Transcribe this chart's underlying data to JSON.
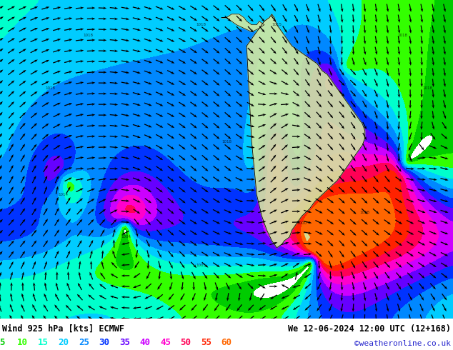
{
  "title_left": "Wind 925 hPa [kts] ECMWF",
  "title_right": "We 12-06-2024 12:00 UTC (12+168)",
  "credit": "©weatheronline.co.uk",
  "legend_values": [
    "5",
    "10",
    "15",
    "20",
    "25",
    "30",
    "35",
    "40",
    "45",
    "50",
    "55",
    "60"
  ],
  "legend_colors": [
    "#00cc00",
    "#33ff00",
    "#00ffcc",
    "#00ccff",
    "#0088ff",
    "#0033ff",
    "#6600ff",
    "#cc00ff",
    "#ff00cc",
    "#ff0055",
    "#ff2200",
    "#ff6600"
  ],
  "bg_color": "#ffffff",
  "fig_width": 6.34,
  "fig_height": 4.9,
  "dpi": 100,
  "xlim": [
    -180,
    0
  ],
  "ylim": [
    -75,
    15
  ],
  "color_thresholds": [
    5,
    10,
    15,
    20,
    25,
    30,
    35,
    40,
    45,
    50,
    55,
    60
  ],
  "color_values": [
    "#ffffff",
    "#00cc00",
    "#33ff00",
    "#00ffcc",
    "#00ccff",
    "#0088ff",
    "#0033ff",
    "#6600ff",
    "#cc00ff",
    "#ff00cc",
    "#ff0055",
    "#ff2200",
    "#ff6600"
  ]
}
